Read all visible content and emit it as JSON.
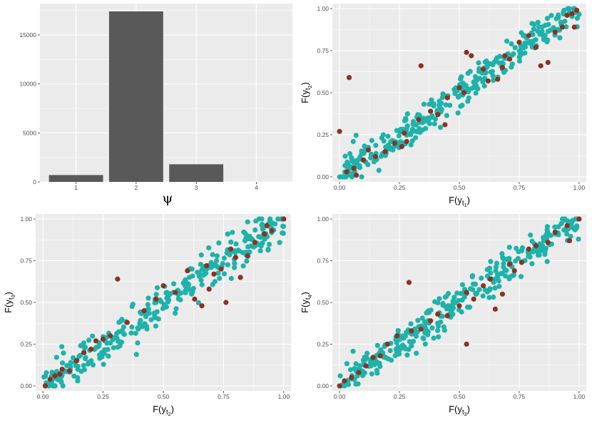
{
  "colors": {
    "panel_bg": "#ebebeb",
    "grid_major": "#ffffff",
    "bar_fill": "#595959",
    "point_teal": "#1fb2aa",
    "point_red": "#8a3324"
  },
  "chart_data": [
    {
      "id": "histogram",
      "type": "bar",
      "categories": [
        "1",
        "2",
        "3",
        "4"
      ],
      "values": [
        700,
        17400,
        1800,
        0
      ],
      "xlim": [
        0.4,
        4.6
      ],
      "ylim": [
        0,
        18200
      ],
      "yticks": [
        0,
        5000,
        10000,
        15000
      ],
      "ytick_labels": [
        "0",
        "5000",
        "10000",
        "15000"
      ],
      "xlabel": "ψ",
      "ylabel": ""
    },
    {
      "id": "scatter-t2-vs-t1",
      "type": "scatter",
      "xlabel": {
        "base": "F(y",
        "sub1": "t",
        "sub2": "1",
        "close": ")"
      },
      "ylabel": {
        "base": "F(y",
        "sub1": "t",
        "sub2": "2",
        "close": ")"
      },
      "xlim": [
        -0.03,
        1.03
      ],
      "ylim": [
        -0.03,
        1.03
      ],
      "ticks": [
        0,
        0.25,
        0.5,
        0.75,
        1
      ],
      "tick_labels": [
        "0.00",
        "0.25",
        "0.50",
        "0.75",
        "1.00"
      ],
      "teal_spread": 0.05,
      "teal_count": 330,
      "seed": 11,
      "red_points": [
        [
          0.0,
          0.27
        ],
        [
          0.04,
          0.59
        ],
        [
          0.03,
          0.03
        ],
        [
          0.06,
          0.05
        ],
        [
          0.07,
          0.01
        ],
        [
          0.1,
          0.1
        ],
        [
          0.12,
          0.16
        ],
        [
          0.15,
          0.12
        ],
        [
          0.19,
          0.15
        ],
        [
          0.23,
          0.2
        ],
        [
          0.26,
          0.18
        ],
        [
          0.28,
          0.21
        ],
        [
          0.27,
          0.26
        ],
        [
          0.33,
          0.34
        ],
        [
          0.34,
          0.66
        ],
        [
          0.38,
          0.39
        ],
        [
          0.41,
          0.37
        ],
        [
          0.44,
          0.31
        ],
        [
          0.45,
          0.47
        ],
        [
          0.5,
          0.53
        ],
        [
          0.52,
          0.5
        ],
        [
          0.53,
          0.74
        ],
        [
          0.55,
          0.72
        ],
        [
          0.6,
          0.64
        ],
        [
          0.62,
          0.57
        ],
        [
          0.66,
          0.58
        ],
        [
          0.68,
          0.65
        ],
        [
          0.69,
          0.72
        ],
        [
          0.71,
          0.7
        ],
        [
          0.75,
          0.8
        ],
        [
          0.79,
          0.84
        ],
        [
          0.82,
          0.77
        ],
        [
          0.84,
          0.66
        ],
        [
          0.87,
          0.68
        ],
        [
          0.9,
          0.86
        ],
        [
          0.93,
          0.89
        ],
        [
          0.95,
          0.96
        ],
        [
          0.97,
          0.97
        ],
        [
          0.99,
          0.99
        ],
        [
          0.98,
          0.89
        ]
      ]
    },
    {
      "id": "scatter-t3-vs-t2",
      "type": "scatter",
      "xlabel": {
        "base": "F(y",
        "sub1": "t",
        "sub2": "2",
        "close": ")"
      },
      "ylabel": {
        "base": "F(y",
        "sub1": "t",
        "sub2": "3",
        "close": ")"
      },
      "xlim": [
        -0.03,
        1.03
      ],
      "ylim": [
        -0.03,
        1.03
      ],
      "ticks": [
        0,
        0.25,
        0.5,
        0.75,
        1
      ],
      "tick_labels": [
        "0.00",
        "0.25",
        "0.50",
        "0.75",
        "1.00"
      ],
      "teal_spread": 0.055,
      "teal_count": 330,
      "seed": 23,
      "red_points": [
        [
          0.01,
          0.0
        ],
        [
          0.03,
          0.04
        ],
        [
          0.05,
          0.06
        ],
        [
          0.07,
          0.07
        ],
        [
          0.08,
          0.1
        ],
        [
          0.11,
          0.09
        ],
        [
          0.14,
          0.15
        ],
        [
          0.17,
          0.2
        ],
        [
          0.2,
          0.22
        ],
        [
          0.22,
          0.27
        ],
        [
          0.25,
          0.28
        ],
        [
          0.28,
          0.3
        ],
        [
          0.31,
          0.64
        ],
        [
          0.35,
          0.38
        ],
        [
          0.42,
          0.45
        ],
        [
          0.47,
          0.52
        ],
        [
          0.5,
          0.6
        ],
        [
          0.55,
          0.56
        ],
        [
          0.6,
          0.69
        ],
        [
          0.63,
          0.52
        ],
        [
          0.66,
          0.48
        ],
        [
          0.68,
          0.72
        ],
        [
          0.69,
          0.58
        ],
        [
          0.71,
          0.67
        ],
        [
          0.74,
          0.7
        ],
        [
          0.76,
          0.5
        ],
        [
          0.78,
          0.82
        ],
        [
          0.8,
          0.77
        ],
        [
          0.82,
          0.65
        ],
        [
          0.85,
          0.78
        ],
        [
          0.88,
          0.86
        ],
        [
          0.92,
          0.91
        ],
        [
          0.95,
          0.93
        ],
        [
          1.0,
          1.0
        ],
        [
          0.93,
          0.96
        ]
      ]
    },
    {
      "id": "scatter-t4-vs-t3",
      "type": "scatter",
      "xlabel": {
        "base": "F(y",
        "sub1": "t",
        "sub2": "3",
        "close": ")"
      },
      "ylabel": {
        "base": "F(y",
        "sub1": "t",
        "sub2": "4",
        "close": ")"
      },
      "xlim": [
        -0.03,
        1.03
      ],
      "ylim": [
        -0.03,
        1.03
      ],
      "ticks": [
        0,
        0.25,
        0.5,
        0.75,
        1
      ],
      "tick_labels": [
        "0.00",
        "0.25",
        "0.50",
        "0.75",
        "1.00"
      ],
      "teal_spread": 0.05,
      "teal_count": 330,
      "seed": 37,
      "red_points": [
        [
          0.0,
          0.0
        ],
        [
          0.02,
          0.03
        ],
        [
          0.05,
          0.05
        ],
        [
          0.08,
          0.08
        ],
        [
          0.11,
          0.12
        ],
        [
          0.14,
          0.17
        ],
        [
          0.17,
          0.18
        ],
        [
          0.2,
          0.25
        ],
        [
          0.24,
          0.3
        ],
        [
          0.29,
          0.62
        ],
        [
          0.3,
          0.33
        ],
        [
          0.34,
          0.34
        ],
        [
          0.38,
          0.39
        ],
        [
          0.41,
          0.43
        ],
        [
          0.45,
          0.42
        ],
        [
          0.5,
          0.48
        ],
        [
          0.53,
          0.25
        ],
        [
          0.53,
          0.56
        ],
        [
          0.56,
          0.52
        ],
        [
          0.6,
          0.6
        ],
        [
          0.63,
          0.64
        ],
        [
          0.65,
          0.46
        ],
        [
          0.68,
          0.55
        ],
        [
          0.71,
          0.73
        ],
        [
          0.73,
          0.69
        ],
        [
          0.76,
          0.74
        ],
        [
          0.79,
          0.82
        ],
        [
          0.82,
          0.84
        ],
        [
          0.87,
          0.86
        ],
        [
          0.9,
          0.92
        ],
        [
          0.95,
          0.96
        ],
        [
          1.0,
          1.0
        ],
        [
          0.96,
          0.87
        ]
      ]
    }
  ]
}
